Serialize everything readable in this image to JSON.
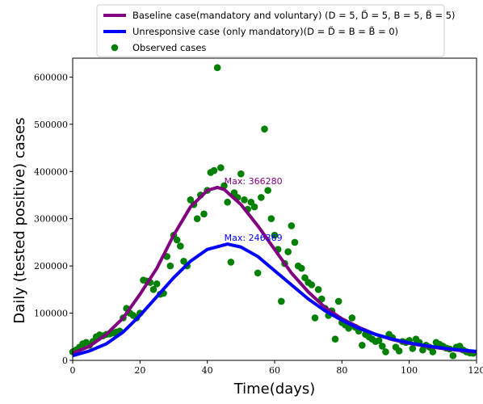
{
  "chart_data": {
    "type": "line",
    "title": "",
    "xlabel": "Time(days)",
    "ylabel": "Daily (tested positive) cases",
    "xlim": [
      0,
      120
    ],
    "ylim": [
      0,
      640000
    ],
    "xticks": [
      "0",
      "20",
      "40",
      "60",
      "80",
      "100",
      "120"
    ],
    "yticks": [
      "0",
      "100000",
      "200000",
      "300000",
      "400000",
      "500000",
      "600000"
    ],
    "legend_position": "top-center",
    "grid": false,
    "series": [
      {
        "name": "Baseline case(mandatory and voluntary) (D = 5, D̃ = 5, B = 5, B̃ = 5)",
        "kind": "line",
        "color": "#800080",
        "x": [
          0,
          5,
          10,
          15,
          20,
          25,
          30,
          35,
          40,
          43,
          45,
          50,
          55,
          60,
          65,
          70,
          75,
          80,
          85,
          90,
          95,
          100,
          105,
          110,
          115,
          120
        ],
        "y": [
          15000,
          30000,
          55000,
          90000,
          140000,
          195000,
          265000,
          325000,
          360000,
          366280,
          362000,
          330000,
          285000,
          235000,
          185000,
          145000,
          112000,
          88000,
          70000,
          55000,
          44000,
          36000,
          30000,
          25000,
          21000,
          18000
        ]
      },
      {
        "name": "Unresponsive case (only mandatory)(D = D̃ = B = B̃ = 0)",
        "kind": "line",
        "color": "#0000ff",
        "x": [
          0,
          5,
          10,
          15,
          20,
          25,
          30,
          35,
          40,
          46,
          50,
          55,
          60,
          65,
          70,
          75,
          80,
          85,
          90,
          95,
          100,
          105,
          110,
          115,
          120
        ],
        "y": [
          10000,
          20000,
          35000,
          60000,
          95000,
          135000,
          175000,
          210000,
          235000,
          246369,
          240000,
          220000,
          190000,
          160000,
          130000,
          105000,
          85000,
          68000,
          55000,
          45000,
          37000,
          31000,
          26000,
          22000,
          19000
        ]
      },
      {
        "name": "Observed cases",
        "kind": "scatter",
        "color": "#008000",
        "x": [
          0,
          1,
          2,
          3,
          4,
          5,
          6,
          7,
          8,
          9,
          10,
          11,
          12,
          13,
          14,
          15,
          16,
          17,
          18,
          19,
          20,
          21,
          22,
          23,
          24,
          25,
          26,
          27,
          28,
          29,
          30,
          31,
          32,
          33,
          34,
          35,
          36,
          37,
          38,
          39,
          40,
          41,
          42,
          43,
          44,
          45,
          46,
          47,
          48,
          49,
          50,
          51,
          52,
          53,
          54,
          55,
          56,
          57,
          58,
          59,
          60,
          61,
          62,
          63,
          64,
          65,
          66,
          67,
          68,
          69,
          70,
          71,
          72,
          73,
          74,
          75,
          76,
          77,
          78,
          79,
          80,
          81,
          82,
          83,
          84,
          85,
          86,
          87,
          88,
          89,
          90,
          91,
          92,
          93,
          94,
          95,
          96,
          97,
          98,
          99,
          100,
          101,
          102,
          103,
          104,
          105,
          106,
          107,
          108,
          109,
          110,
          111,
          112,
          113,
          114,
          115,
          116,
          117,
          118,
          119
        ],
        "y": [
          18000,
          22000,
          28000,
          35000,
          38000,
          32000,
          40000,
          50000,
          54000,
          52000,
          55000,
          56000,
          58000,
          60000,
          62000,
          90000,
          110000,
          100000,
          95000,
          90000,
          100000,
          170000,
          168000,
          165000,
          150000,
          162000,
          140000,
          142000,
          220000,
          200000,
          265000,
          255000,
          242000,
          210000,
          200000,
          340000,
          330000,
          300000,
          350000,
          310000,
          360000,
          398000,
          402000,
          620000,
          408000,
          370000,
          335000,
          208000,
          355000,
          345000,
          395000,
          340000,
          320000,
          335000,
          325000,
          185000,
          345000,
          490000,
          360000,
          300000,
          265000,
          235000,
          125000,
          205000,
          230000,
          285000,
          250000,
          200000,
          195000,
          175000,
          165000,
          160000,
          90000,
          150000,
          130000,
          110000,
          95000,
          105000,
          45000,
          125000,
          80000,
          75000,
          68000,
          90000,
          70000,
          62000,
          32000,
          55000,
          50000,
          45000,
          40000,
          42000,
          30000,
          18000,
          55000,
          48000,
          28000,
          20000,
          40000,
          38000,
          42000,
          25000,
          45000,
          38000,
          22000,
          32000,
          28000,
          18000,
          38000,
          34000,
          30000,
          26000,
          24000,
          10000,
          28000,
          30000,
          22000,
          18000,
          16000,
          15000
        ]
      }
    ],
    "annotations": [
      {
        "text": "Max: 366280",
        "x": 46,
        "y": 366280,
        "color": "#800080"
      },
      {
        "text": "Max: 246369",
        "x": 46,
        "y": 246369,
        "color": "#0000ff"
      }
    ]
  }
}
